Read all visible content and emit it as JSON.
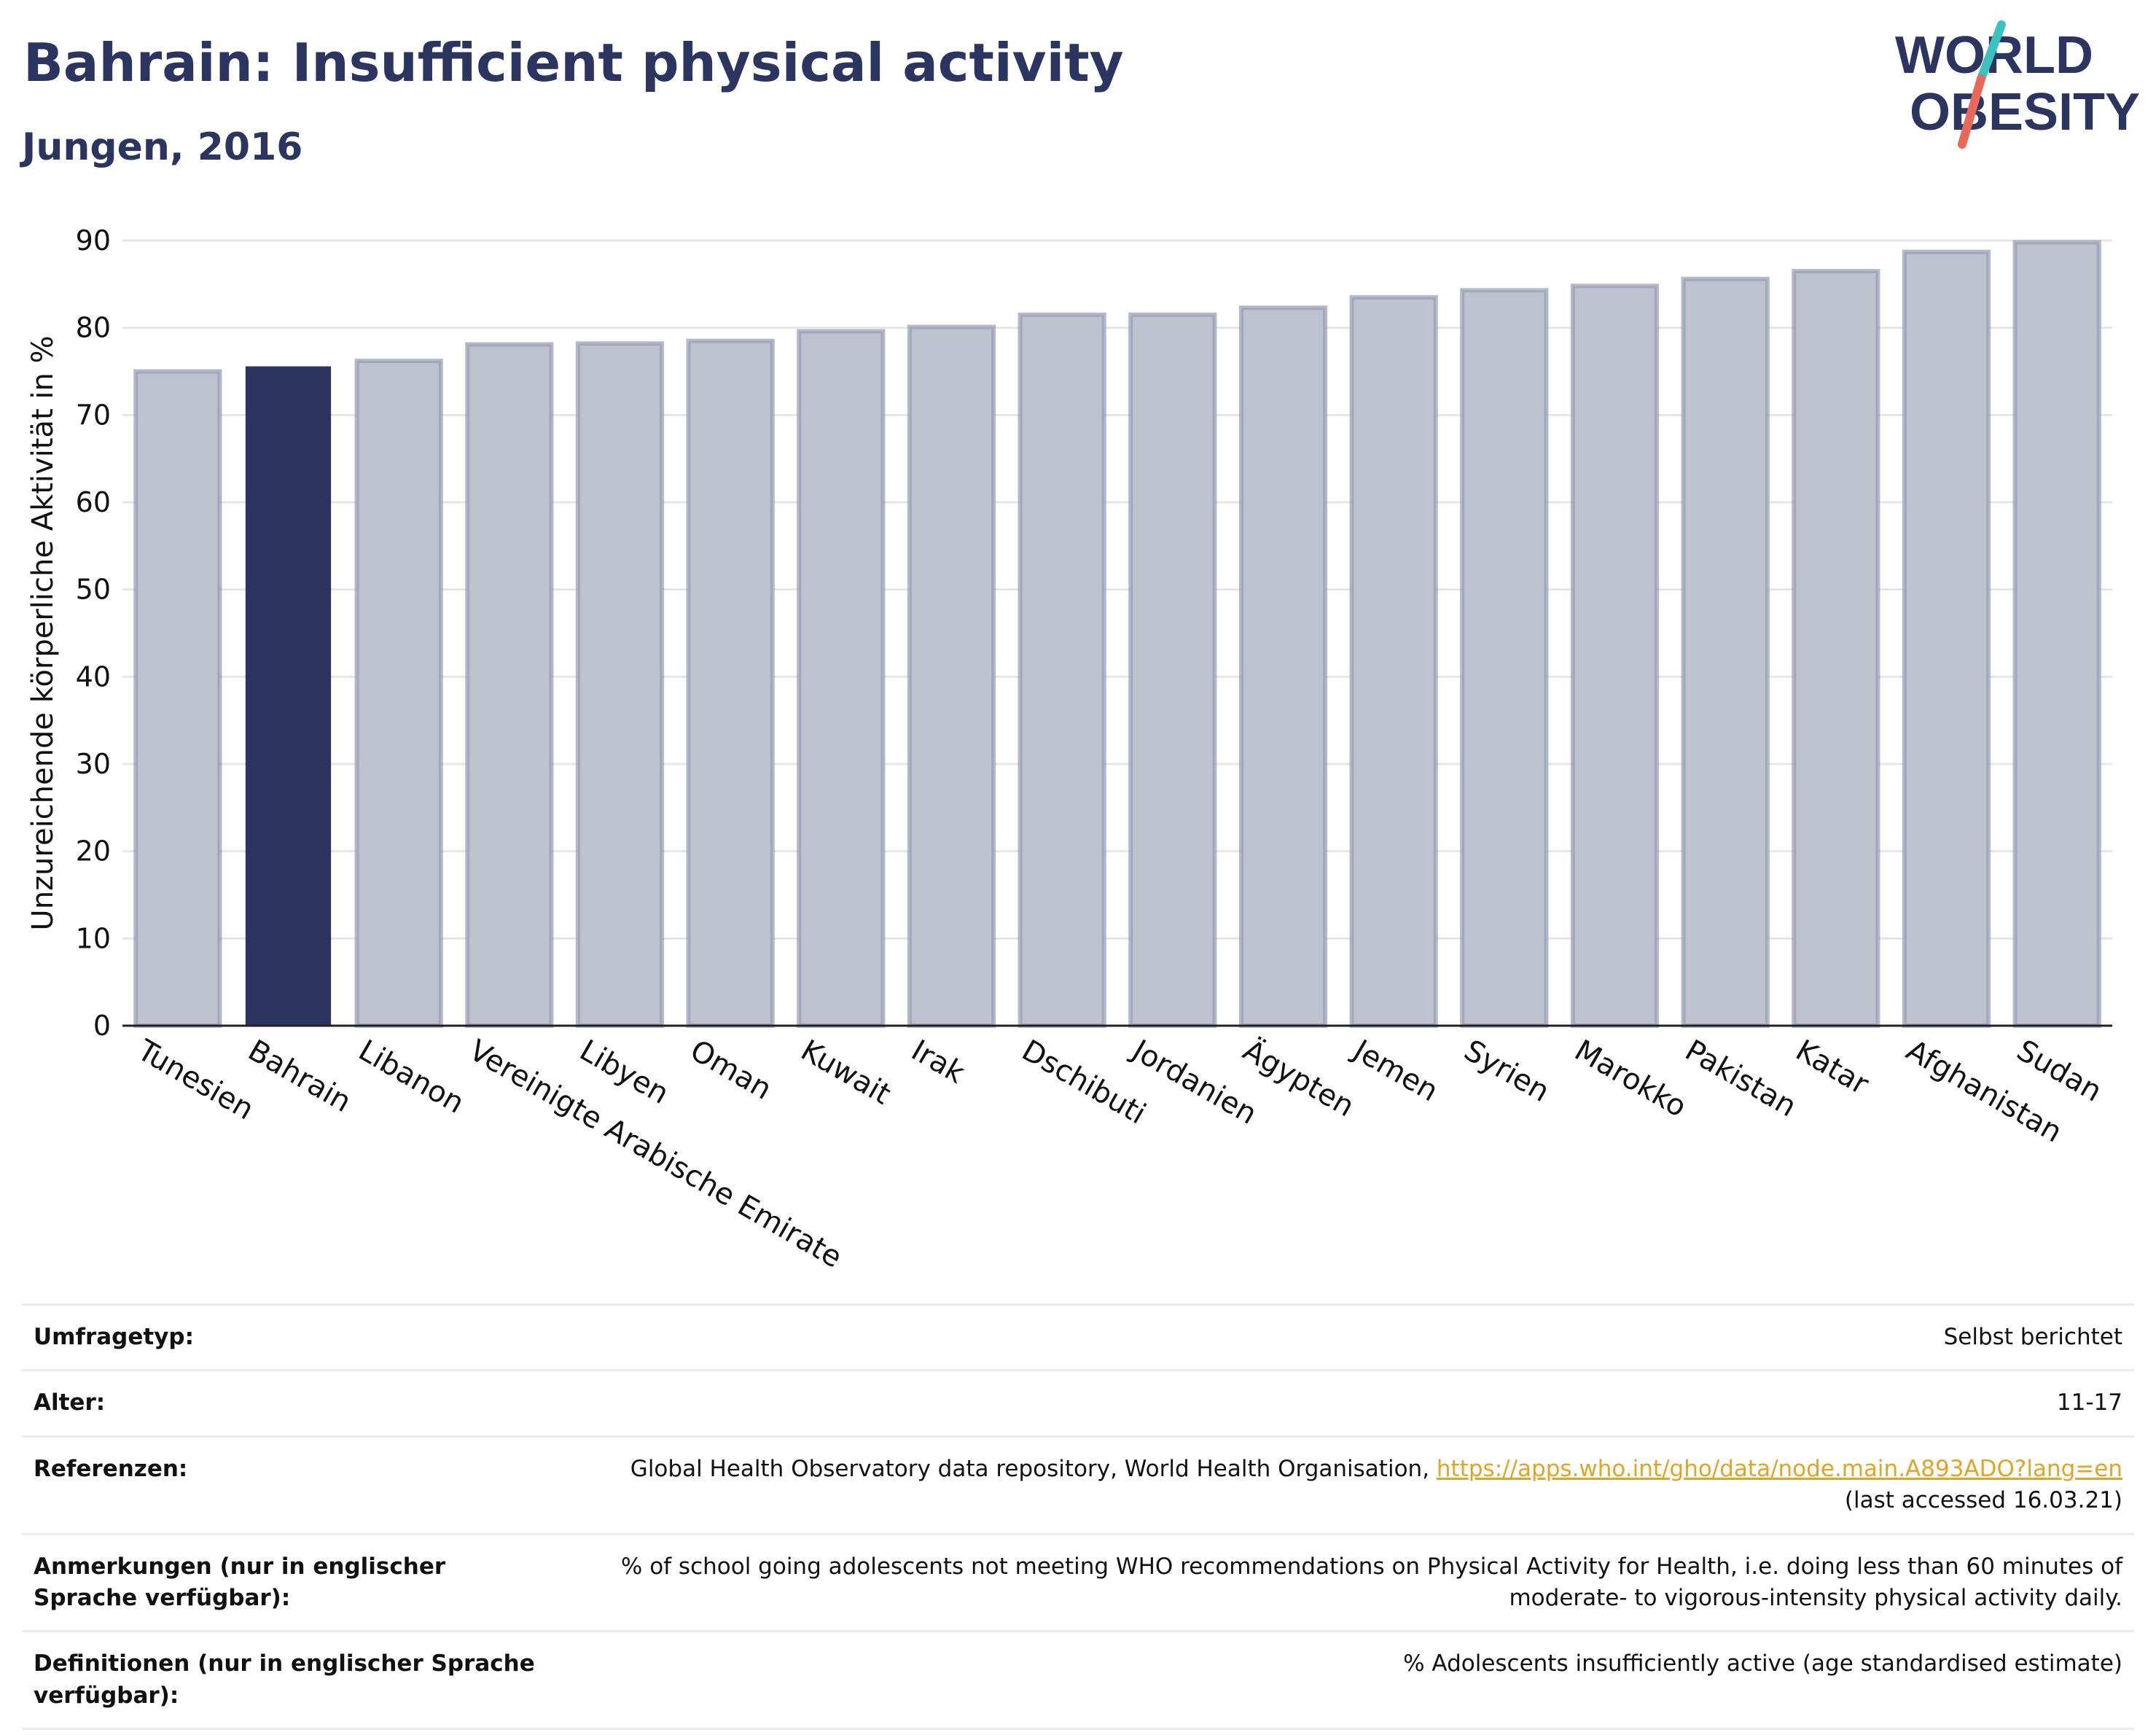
{
  "header": {
    "title": "Bahrain: Insufficient physical activity",
    "subtitle": "Jungen, 2016"
  },
  "logo": {
    "line1": "WORLD",
    "line2": "OBESITY",
    "colors": {
      "text": "#2b3560",
      "slash_top": "#3cc0c0",
      "slash_bottom": "#e8685a"
    }
  },
  "colors": {
    "highlight_bar": "#2b3560",
    "other_bar_fill": "#bec1ce",
    "other_bar_stroke": "#959bb5",
    "link": "#e0a526"
  },
  "chart_data": {
    "type": "bar",
    "title": "",
    "xlabel": "",
    "ylabel": "Unzureichende körperliche Aktivität in %",
    "ylim": [
      0,
      90
    ],
    "yticks": [
      0,
      10,
      20,
      30,
      40,
      50,
      60,
      70,
      80,
      90
    ],
    "grid": true,
    "highlight": "Bahrain",
    "categories": [
      "Tunesien",
      "Bahrain",
      "Libanon",
      "Vereinigte Arabische Emirate",
      "Libyen",
      "Oman",
      "Kuwait",
      "Irak",
      "Dschibuti",
      "Jordanien",
      "Ägypten",
      "Jemen",
      "Syrien",
      "Marokko",
      "Pakistan",
      "Katar",
      "Afghanistan",
      "Sudan"
    ],
    "values": [
      75,
      75.5,
      76.2,
      78.1,
      78.2,
      78.5,
      79.6,
      80.1,
      81.5,
      81.5,
      82.3,
      83.5,
      84.3,
      84.8,
      85.6,
      86.5,
      88.7,
      89.8
    ]
  },
  "info": {
    "survey": {
      "label": "Umfragetyp:",
      "value": "Selbst berichtet"
    },
    "age": {
      "label": "Alter:",
      "value": "11-17"
    },
    "references": {
      "label": "Referenzen:",
      "text": "Global Health Observatory data repository, World Health Organisation, ",
      "link": "https://apps.who.int/gho/data/node.main.A893ADO?lang=en",
      "accessed": "(last accessed 16.03.21)"
    },
    "notes": {
      "label": "Anmerkungen (nur in englischer Sprache verfügbar):",
      "value": "% of school going adolescents not meeting WHO recommendations on Physical Activity for Health, i.e. doing less than 60 minutes of moderate- to vigorous-intensity physical activity daily."
    },
    "definitions": {
      "label": "Definitionen (nur in englischer Sprache verfügbar):",
      "value": "% Adolescents insufficiently active (age standardised estimate)"
    }
  }
}
